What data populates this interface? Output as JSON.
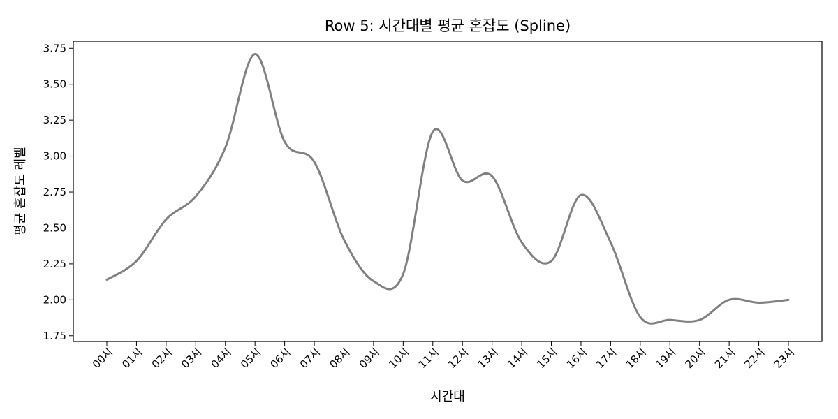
{
  "chart_data": {
    "type": "line",
    "title": "Row 5: 시간대별 평균 혼잡도 (Spline)",
    "xlabel": "시간대",
    "ylabel": "평균 혼잡도 레벨",
    "categories": [
      "00시",
      "01시",
      "02시",
      "03시",
      "04시",
      "05시",
      "06시",
      "07시",
      "08시",
      "09시",
      "10시",
      "11시",
      "12시",
      "13시",
      "14시",
      "15시",
      "16시",
      "17시",
      "18시",
      "19시",
      "20시",
      "21시",
      "22시",
      "23시"
    ],
    "series": [
      {
        "values": [
          2.14,
          2.27,
          2.56,
          2.72,
          3.06,
          3.71,
          3.1,
          2.96,
          2.42,
          2.13,
          2.18,
          3.17,
          2.83,
          2.86,
          2.4,
          2.27,
          2.73,
          2.4,
          1.88,
          1.86,
          1.86,
          2.0,
          1.98,
          2.0
        ],
        "color": "#808080"
      }
    ],
    "ylim": [
      1.71,
      3.8
    ],
    "yticks": [
      "1.75",
      "2.00",
      "2.25",
      "2.50",
      "2.75",
      "3.00",
      "3.25",
      "3.50",
      "3.75"
    ],
    "grid": false,
    "smooth": "spline"
  }
}
